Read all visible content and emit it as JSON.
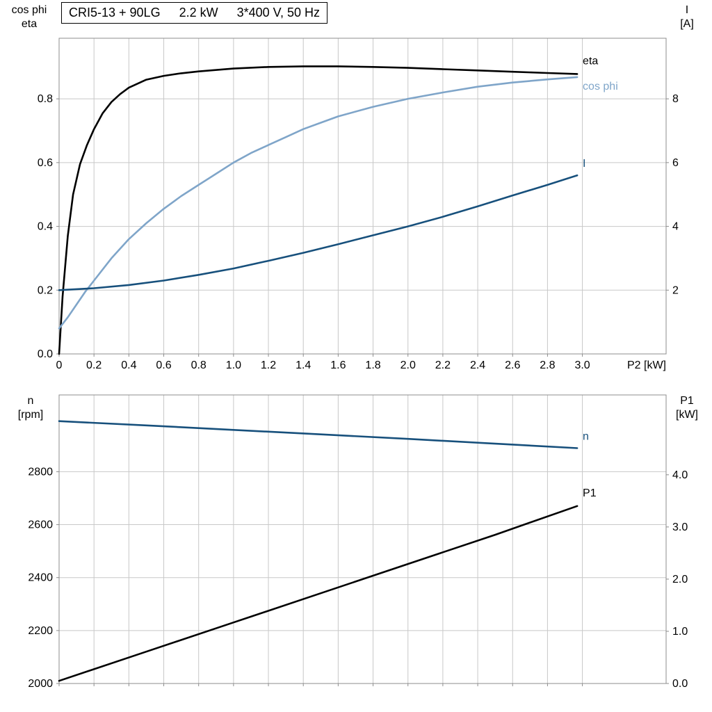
{
  "title_parts": [
    "CRI5-13 + 90LG",
    "2.2 kW",
    "3*400 V, 50 Hz"
  ],
  "colors": {
    "eta": "#000000",
    "cos_phi": "#7fa5c9",
    "current": "#17507c",
    "speed": "#17507c",
    "p1": "#000000",
    "grid": "#c8c8c8",
    "frame": "#8c8c8c",
    "text": "#000000"
  },
  "chart_data": [
    {
      "name": "motor-efficiency-panel",
      "type": "line",
      "title": "",
      "xlabel": "P2 [kW]",
      "ylabel_left_lines": [
        "cos phi",
        "eta"
      ],
      "ylabel_right_lines": [
        "I",
        "[A]"
      ],
      "xlim": [
        0,
        3.48
      ],
      "ylim_left": [
        0,
        0.99
      ],
      "ylim_right": [
        0,
        9.9
      ],
      "grid": true,
      "x_ticks": {
        "values": [
          0,
          0.2,
          0.4,
          0.6,
          0.8,
          1.0,
          1.2,
          1.4,
          1.6,
          1.8,
          2.0,
          2.2,
          2.4,
          2.6,
          2.8,
          3.0
        ],
        "labels": [
          "0",
          "0.2",
          "0.4",
          "0.6",
          "0.8",
          "1.0",
          "1.2",
          "1.4",
          "1.6",
          "1.8",
          "2.0",
          "2.2",
          "2.4",
          "2.6",
          "2.8",
          "3.0"
        ],
        "show_labels": true
      },
      "y_ticks_left": {
        "values": [
          0,
          0.2,
          0.4,
          0.6,
          0.8
        ],
        "labels": [
          "0.0",
          "0.2",
          "0.4",
          "0.6",
          "0.8"
        ]
      },
      "y_ticks_right": {
        "values": [
          2,
          4,
          6,
          8
        ],
        "labels": [
          "2",
          "4",
          "6",
          "8"
        ]
      },
      "series": [
        {
          "name": "eta",
          "label": "eta",
          "axis": "left",
          "color_key": "eta",
          "label_offset": [
            8,
            -14
          ],
          "x": [
            0,
            0.02,
            0.05,
            0.08,
            0.12,
            0.16,
            0.2,
            0.25,
            0.3,
            0.35,
            0.4,
            0.5,
            0.6,
            0.7,
            0.8,
            1.0,
            1.2,
            1.4,
            1.6,
            1.8,
            2.0,
            2.2,
            2.4,
            2.6,
            2.8,
            2.97
          ],
          "y": [
            0,
            0.18,
            0.37,
            0.5,
            0.595,
            0.655,
            0.705,
            0.755,
            0.79,
            0.815,
            0.835,
            0.86,
            0.872,
            0.88,
            0.886,
            0.895,
            0.9,
            0.902,
            0.902,
            0.9,
            0.897,
            0.893,
            0.889,
            0.885,
            0.881,
            0.878
          ]
        },
        {
          "name": "cos-phi",
          "label": "cos phi",
          "axis": "left",
          "color_key": "cos_phi",
          "label_offset": [
            8,
            18
          ],
          "x": [
            0,
            0.05,
            0.1,
            0.15,
            0.2,
            0.3,
            0.4,
            0.5,
            0.6,
            0.7,
            0.8,
            0.9,
            1.0,
            1.1,
            1.2,
            1.3,
            1.4,
            1.5,
            1.6,
            1.8,
            2.0,
            2.2,
            2.4,
            2.6,
            2.8,
            2.97
          ],
          "y": [
            0.08,
            0.115,
            0.155,
            0.195,
            0.23,
            0.3,
            0.36,
            0.41,
            0.455,
            0.495,
            0.53,
            0.565,
            0.6,
            0.63,
            0.655,
            0.68,
            0.705,
            0.725,
            0.745,
            0.775,
            0.8,
            0.82,
            0.838,
            0.851,
            0.861,
            0.868
          ]
        },
        {
          "name": "current",
          "label": "I",
          "axis": "right",
          "color_key": "current",
          "label_offset": [
            8,
            -12
          ],
          "x": [
            0,
            0.2,
            0.4,
            0.6,
            0.8,
            1.0,
            1.2,
            1.4,
            1.6,
            1.8,
            2.0,
            2.2,
            2.4,
            2.6,
            2.8,
            2.97
          ],
          "y": [
            2.0,
            2.06,
            2.16,
            2.3,
            2.48,
            2.68,
            2.92,
            3.17,
            3.44,
            3.72,
            4.0,
            4.3,
            4.63,
            4.97,
            5.3,
            5.6
          ]
        }
      ]
    },
    {
      "name": "speed-power-panel",
      "type": "line",
      "title": "",
      "xlabel": "",
      "ylabel_left_lines": [
        "n",
        "[rpm]"
      ],
      "ylabel_right_lines": [
        "P1",
        "[kW]"
      ],
      "xlim": [
        0,
        3.48
      ],
      "ylim_left": [
        2000,
        3090
      ],
      "ylim_right": [
        0,
        5.53
      ],
      "grid": true,
      "x_ticks": {
        "values": [
          0,
          0.2,
          0.4,
          0.6,
          0.8,
          1.0,
          1.2,
          1.4,
          1.6,
          1.8,
          2.0,
          2.2,
          2.4,
          2.6,
          2.8,
          3.0
        ],
        "labels": [],
        "show_labels": false
      },
      "y_ticks_left": {
        "values": [
          2000,
          2200,
          2400,
          2600,
          2800
        ],
        "labels": [
          "2000",
          "2200",
          "2400",
          "2600",
          "2800"
        ]
      },
      "y_ticks_right": {
        "values": [
          0,
          1.0,
          2.0,
          3.0,
          4.0
        ],
        "labels": [
          "0.0",
          "1.0",
          "2.0",
          "3.0",
          "4.0"
        ]
      },
      "series": [
        {
          "name": "speed",
          "label": "n",
          "axis": "left",
          "color_key": "speed",
          "label_offset": [
            8,
            -12
          ],
          "x": [
            0,
            0.5,
            1.0,
            1.5,
            2.0,
            2.5,
            2.97
          ],
          "y": [
            2991,
            2975,
            2958,
            2941,
            2924,
            2906,
            2889
          ]
        },
        {
          "name": "p1",
          "label": "P1",
          "axis": "right",
          "color_key": "p1",
          "label_offset": [
            8,
            -14
          ],
          "x": [
            0,
            0.5,
            1.0,
            1.5,
            2.0,
            2.5,
            2.97
          ],
          "y": [
            0.05,
            0.61,
            1.17,
            1.73,
            2.29,
            2.85,
            3.4
          ]
        }
      ]
    }
  ]
}
